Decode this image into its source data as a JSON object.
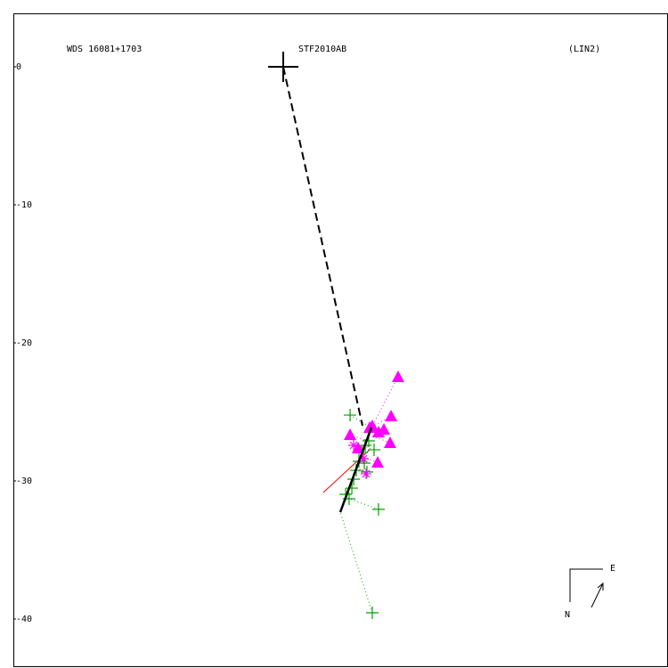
{
  "chart_data": {
    "type": "scatter",
    "annotations": [
      "WDS 16081+1703",
      "STF2010AB",
      "(LIN2)"
    ],
    "compass": {
      "east": "E",
      "north": "N"
    },
    "xlim": [
      -19.55,
      27.87
    ],
    "ylim": [
      -43.55,
      3.87
    ],
    "yticks": [
      0,
      -10,
      -20,
      -30,
      -40
    ],
    "primary": {
      "x": 0,
      "y": 0
    },
    "series": [
      {
        "marker": "plus",
        "color": "#00a000",
        "x": [
          4.84,
          6.9,
          6.45,
          4.77,
          4.97,
          5.1,
          5.29,
          5.48,
          5.68,
          5.94,
          6.19,
          6.58,
          4.52,
          5.87,
          6.06
        ],
        "y": [
          -25.23,
          -32.06,
          -39.55,
          -31.29,
          -30.52,
          -29.87,
          -29.23,
          -28.58,
          -27.94,
          -27.42,
          -27.1,
          -27.74,
          -30.97,
          -28.71,
          -29.35
        ]
      },
      {
        "marker": "triangle",
        "color": "#ff00ff",
        "x": [
          8.32,
          7.81,
          7.74,
          7.29,
          6.84,
          4.84,
          5.42,
          6.45,
          6.9,
          6.26
        ],
        "y": [
          -22.45,
          -25.29,
          -27.23,
          -26.26,
          -28.65,
          -26.65,
          -27.61,
          -26.0,
          -26.45,
          -26.13
        ]
      },
      {
        "marker": "asterisk",
        "color": "#ff00ff",
        "x": [
          6.0,
          5.48,
          5.1,
          5.81
        ],
        "y": [
          -29.48,
          -27.74,
          -27.42,
          -28.39
        ]
      }
    ],
    "fit_line": {
      "x": [
        4.13,
        6.39
      ],
      "y": [
        -32.26,
        -26.13
      ],
      "color": "#000000"
    },
    "dashed_line": {
      "x": [
        0,
        5.74
      ],
      "y": [
        0,
        -26.0
      ],
      "color": "#000000"
    },
    "red_line": {
      "x": [
        2.9,
        6.26
      ],
      "y": [
        -30.84,
        -27.74
      ],
      "color": "#ff0000"
    }
  }
}
